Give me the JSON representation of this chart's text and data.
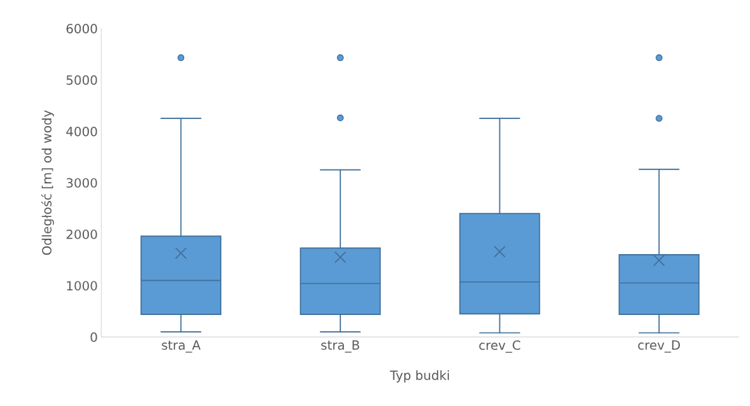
{
  "chart_data": {
    "type": "box",
    "xlabel": "Typ budki",
    "ylabel": "Odległość [m] od wody",
    "categories": [
      "stra_A",
      "stra_B",
      "crev_C",
      "crev_D"
    ],
    "boxes": [
      {
        "low": 100,
        "q1": 440,
        "median": 1100,
        "q3": 1960,
        "high": 4250,
        "mean": 1630,
        "outliers": [
          5430
        ]
      },
      {
        "low": 100,
        "q1": 440,
        "median": 1040,
        "q3": 1730,
        "high": 3250,
        "mean": 1550,
        "outliers": [
          5430,
          4260
        ]
      },
      {
        "low": 80,
        "q1": 450,
        "median": 1070,
        "q3": 2400,
        "high": 4250,
        "mean": 1660
      },
      {
        "low": 80,
        "q1": 440,
        "median": 1050,
        "q3": 1600,
        "high": 3260,
        "mean": 1490,
        "outliers": [
          5430,
          4250
        ]
      }
    ],
    "color": "#5b9bd5",
    "ylim": [
      0,
      6000
    ],
    "yticks": [
      0,
      1000,
      2000,
      3000,
      4000,
      5000,
      6000
    ],
    "grid": false,
    "legend": false
  }
}
